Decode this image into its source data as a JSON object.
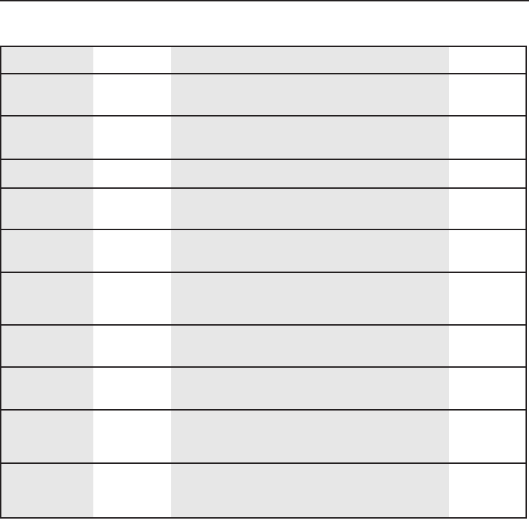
{
  "table": {
    "column_fills": [
      "#e7e7e7",
      "#ffffff",
      "#e7e7e7",
      "#ffffff"
    ],
    "border_color": "#231f20",
    "rows": [
      [
        "",
        "",
        "",
        ""
      ],
      [
        "",
        "",
        "",
        ""
      ],
      [
        "",
        "",
        "",
        ""
      ],
      [
        "",
        "",
        "",
        ""
      ],
      [
        "",
        "",
        "",
        ""
      ],
      [
        "",
        "",
        "",
        ""
      ],
      [
        "",
        "",
        "",
        ""
      ],
      [
        "",
        "",
        "",
        ""
      ],
      [
        "",
        "",
        "",
        ""
      ],
      [
        "",
        "",
        "",
        ""
      ],
      [
        "",
        "",
        "",
        ""
      ]
    ]
  }
}
